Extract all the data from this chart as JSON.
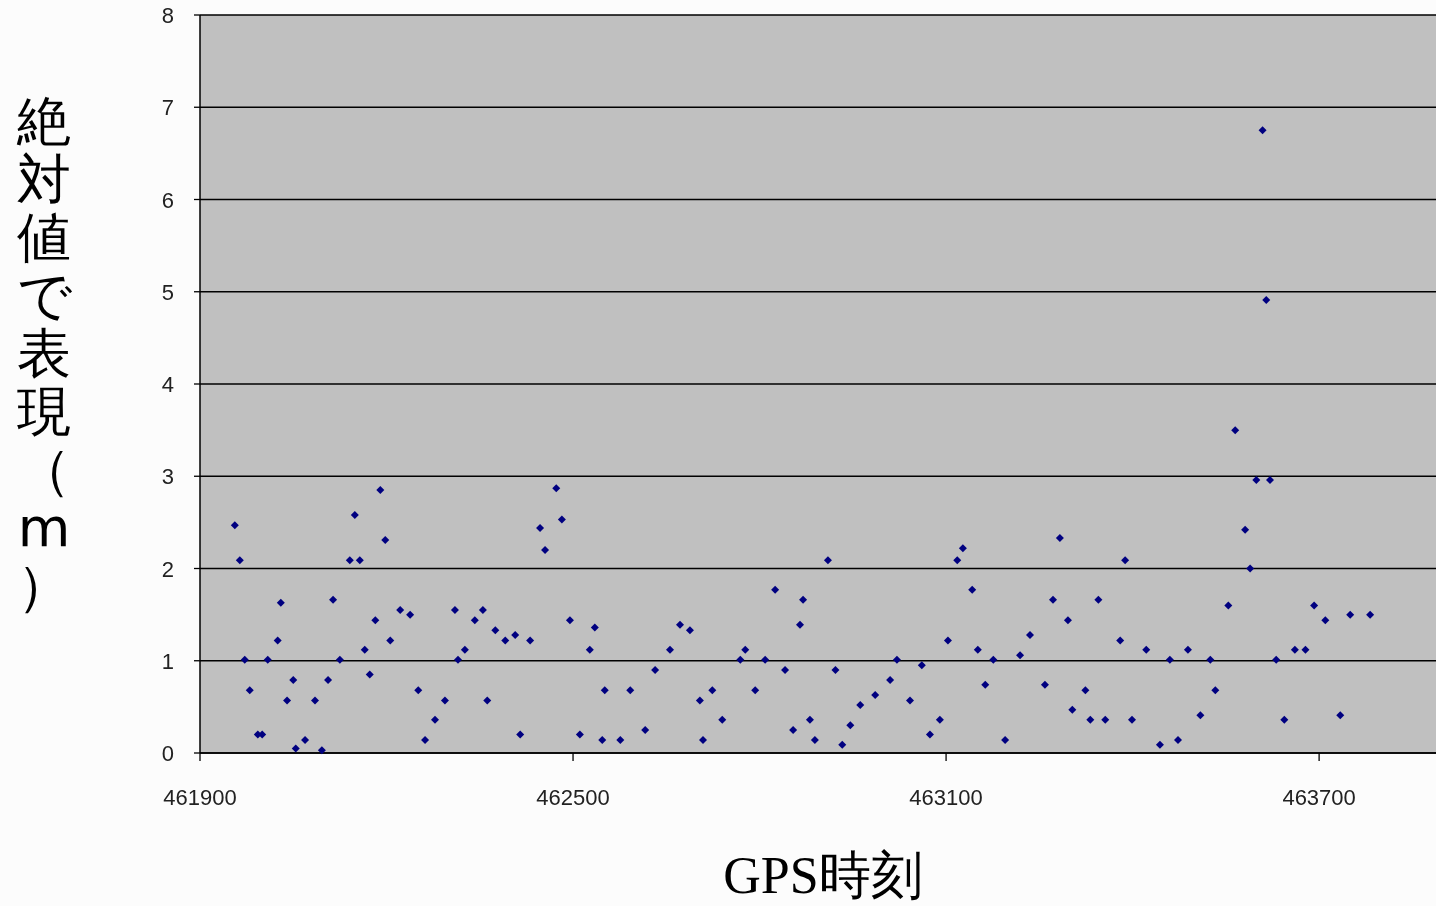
{
  "chart_data": {
    "type": "scatter",
    "xlabel": "GPS時刻",
    "ylabel": "絶対値で表現（m）",
    "color": "#000080",
    "marker": "diamond",
    "grid": "y",
    "xlim": [
      461900,
      463888
    ],
    "xticks": [
      461900,
      462500,
      463100,
      463700
    ],
    "ylim": [
      0,
      8
    ],
    "yticks": [
      0,
      1,
      2,
      3,
      4,
      5,
      6,
      7,
      8
    ],
    "x": [
      461956,
      461964,
      461972,
      461980,
      461993,
      462000,
      462009,
      462025,
      462030,
      462040,
      462050,
      462054,
      462069,
      462085,
      462096,
      462106,
      462114,
      462125,
      462141,
      462149,
      462157,
      462165,
      462173,
      462182,
      462190,
      462198,
      462206,
      462222,
      462238,
      462251,
      462262,
      462278,
      462294,
      462310,
      462315,
      462326,
      462342,
      462355,
      462362,
      462375,
      462391,
      462407,
      462415,
      462431,
      462447,
      462455,
      462473,
      462482,
      462495,
      462511,
      462527,
      462535,
      462547,
      462551,
      462576,
      462592,
      462616,
      462632,
      462656,
      462672,
      462688,
      462704,
      462709,
      462724,
      462740,
      462769,
      462777,
      462793,
      462809,
      462825,
      462841,
      462854,
      462865,
      462870,
      462881,
      462889,
      462910,
      462922,
      462933,
      462946,
      462962,
      462986,
      463010,
      463021,
      463042,
      463061,
      463074,
      463090,
      463103,
      463118,
      463127,
      463142,
      463151,
      463163,
      463176,
      463195,
      463219,
      463235,
      463259,
      463272,
      463283,
      463296,
      463303,
      463324,
      463332,
      463345,
      463356,
      463380,
      463388,
      463399,
      463422,
      463444,
      463460,
      463473,
      463489,
      463509,
      463525,
      463533,
      463554,
      463565,
      463581,
      463589,
      463599,
      463609,
      463615,
      463621,
      463631,
      463644,
      463661,
      463678,
      463692,
      463710,
      463734,
      463750,
      463782
    ],
    "values": [
      2.47,
      2.09,
      1.01,
      0.68,
      0.2,
      0.2,
      1.01,
      1.22,
      1.63,
      0.57,
      0.79,
      0.05,
      0.14,
      0.57,
      0.03,
      0.79,
      1.66,
      1.01,
      2.09,
      2.58,
      2.09,
      1.12,
      0.85,
      1.44,
      2.85,
      2.31,
      1.22,
      1.55,
      1.5,
      0.68,
      0.14,
      0.36,
      0.57,
      1.55,
      1.01,
      1.12,
      1.44,
      1.55,
      0.57,
      1.33,
      1.22,
      1.28,
      0.2,
      1.22,
      2.44,
      2.2,
      2.87,
      2.53,
      1.44,
      0.2,
      1.12,
      1.36,
      0.14,
      0.68,
      0.14,
      0.68,
      0.25,
      0.9,
      1.12,
      1.39,
      1.33,
      0.57,
      0.14,
      0.68,
      0.36,
      1.01,
      1.12,
      0.68,
      1.01,
      1.77,
      0.9,
      0.25,
      1.39,
      1.66,
      0.36,
      0.14,
      2.09,
      0.9,
      0.09,
      0.3,
      0.52,
      0.63,
      0.79,
      1.01,
      0.57,
      0.95,
      0.2,
      0.36,
      1.22,
      2.09,
      2.22,
      1.77,
      1.12,
      0.74,
      1.01,
      0.14,
      1.06,
      1.28,
      0.74,
      1.66,
      2.33,
      1.44,
      0.47,
      0.68,
      0.36,
      1.66,
      0.36,
      1.22,
      2.09,
      0.36,
      1.12,
      0.09,
      1.01,
      0.14,
      1.12,
      0.41,
      1.01,
      0.68,
      1.6,
      3.5,
      2.42,
      2.0,
      2.96,
      6.75,
      4.91,
      2.96,
      1.01,
      0.36,
      1.12,
      1.12,
      1.6,
      1.44,
      0.41,
      1.5,
      1.5
    ]
  }
}
